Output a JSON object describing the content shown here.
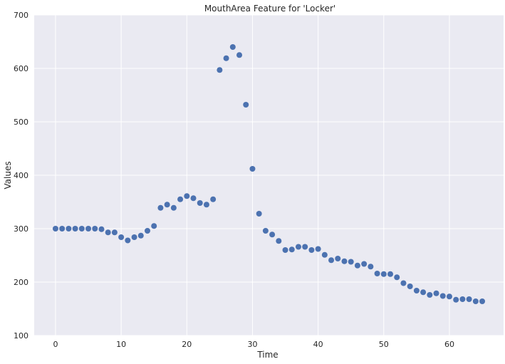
{
  "chart_data": {
    "type": "scatter",
    "title": "MouthArea Feature for 'Locker'",
    "xlabel": "Time",
    "ylabel": "Values",
    "xlim": [
      -3.25,
      68.25
    ],
    "ylim": [
      100,
      700
    ],
    "xticks": [
      0,
      10,
      20,
      30,
      40,
      50,
      60
    ],
    "yticks": [
      100,
      200,
      300,
      400,
      500,
      600,
      700
    ],
    "grid": true,
    "colors": {
      "background": "#eaeaf2",
      "grid": "#ffffff",
      "marker": "#4c72b0"
    },
    "series": [
      {
        "x": [
          0,
          1,
          2,
          3,
          4,
          5,
          6,
          7,
          8,
          9,
          10,
          11,
          12,
          13,
          14,
          15,
          16,
          17,
          18,
          19,
          20,
          21,
          22,
          23,
          24,
          25,
          26,
          27,
          28,
          29,
          30,
          31,
          32,
          33,
          34,
          35,
          36,
          37,
          38,
          39,
          40,
          41,
          42,
          43,
          44,
          45,
          46,
          47,
          48,
          49,
          50,
          51,
          52,
          53,
          54,
          55,
          56,
          57,
          58,
          59,
          60,
          61,
          62,
          63,
          64,
          65
        ],
        "y": [
          300,
          300,
          300,
          300,
          300,
          300,
          300,
          299,
          293,
          293,
          284,
          278,
          284,
          287,
          296,
          305,
          339,
          345,
          339,
          355,
          361,
          357,
          348,
          345,
          355,
          597,
          619,
          640,
          625,
          532,
          412,
          328,
          296,
          289,
          277,
          260,
          261,
          266,
          266,
          260,
          262,
          251,
          241,
          244,
          239,
          238,
          231,
          234,
          229,
          216,
          215,
          215,
          209,
          198,
          192,
          184,
          181,
          176,
          179,
          174,
          173,
          167,
          168,
          168,
          164,
          164
        ]
      }
    ]
  }
}
